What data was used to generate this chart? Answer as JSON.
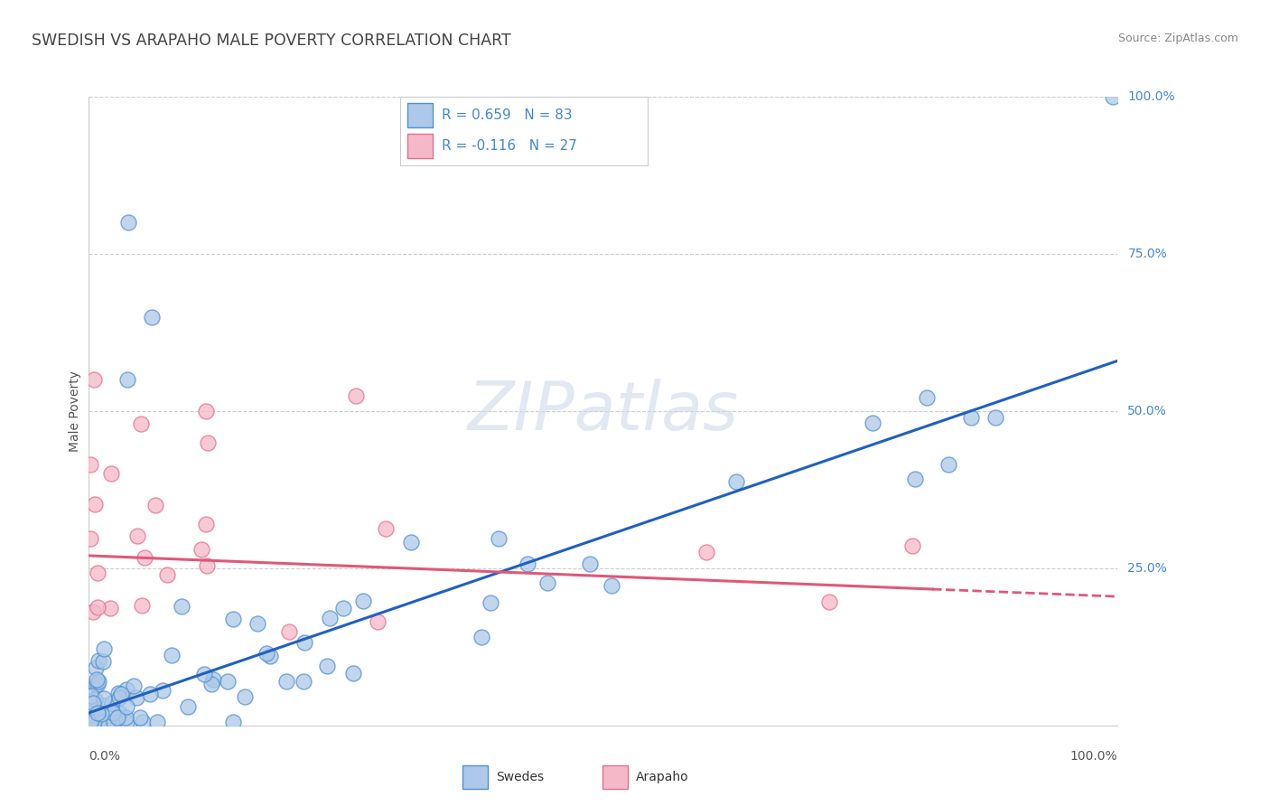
{
  "title": "SWEDISH VS ARAPAHO MALE POVERTY CORRELATION CHART",
  "source": "Source: ZipAtlas.com",
  "ylabel": "Male Poverty",
  "swedes_R": 0.659,
  "swedes_N": 83,
  "arapaho_R": -0.116,
  "arapaho_N": 27,
  "swedes_color": "#adc8e8",
  "swedes_edge_color": "#5090d0",
  "swedes_line_color": "#2060c0",
  "arapaho_color": "#f5b8c8",
  "arapaho_edge_color": "#e07090",
  "arapaho_line_color": "#e05878",
  "legend_label_swedes": "Swedes",
  "legend_label_arapaho": "Arapaho",
  "watermark": "ZIPatlas",
  "background_color": "#ffffff",
  "grid_color": "#cccccc",
  "title_color": "#444444",
  "source_color": "#888888",
  "label_color": "#4488cc",
  "axis_label_color": "#555555"
}
